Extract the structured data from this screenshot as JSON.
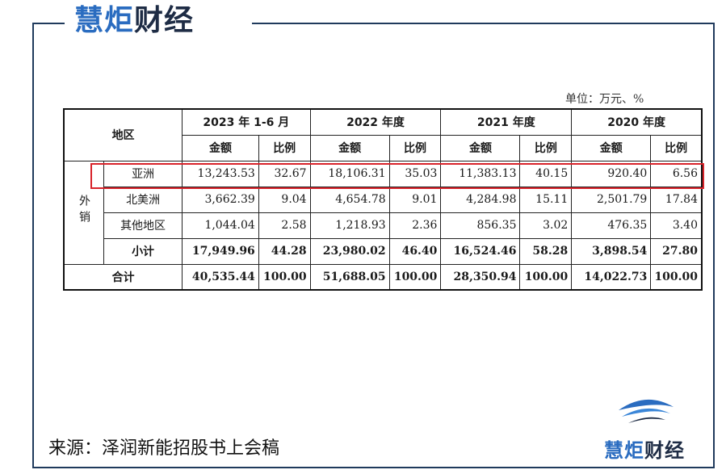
{
  "brand": {
    "part1": "慧炬",
    "part2": "财经"
  },
  "unit_note": "单位：万元、%",
  "table": {
    "region_header": "地区",
    "periods": [
      "2023 年 1-6 月",
      "2022 年度",
      "2021 年度",
      "2020 年度"
    ],
    "sub_headers": {
      "amount": "金额",
      "ratio": "比例"
    },
    "export_group": "外销",
    "rows": [
      {
        "name": "亚洲",
        "values": [
          "13,243.53",
          "32.67",
          "18,106.31",
          "35.03",
          "11,383.13",
          "40.15",
          "920.40",
          "6.56"
        ]
      },
      {
        "name": "北美洲",
        "values": [
          "3,662.39",
          "9.04",
          "4,654.78",
          "9.01",
          "4,284.98",
          "15.11",
          "2,501.79",
          "17.84"
        ]
      },
      {
        "name": "其他地区",
        "values": [
          "1,044.04",
          "2.58",
          "1,218.93",
          "2.36",
          "856.35",
          "3.02",
          "476.35",
          "3.40"
        ]
      }
    ],
    "subtotal": {
      "name": "小计",
      "values": [
        "17,949.96",
        "44.28",
        "23,980.02",
        "46.40",
        "16,524.46",
        "58.28",
        "3,898.54",
        "27.80"
      ]
    },
    "total": {
      "name": "合计",
      "values": [
        "40,535.44",
        "100.00",
        "51,688.05",
        "100.00",
        "28,350.94",
        "100.00",
        "14,022.73",
        "100.00"
      ]
    }
  },
  "source": "来源：泽润新能招股书上会稿",
  "colors": {
    "highlight": "#d8232a",
    "brand_blue": "#2a6cc0",
    "brand_dark": "#1e2c45",
    "frame": "#1f3a5c"
  }
}
